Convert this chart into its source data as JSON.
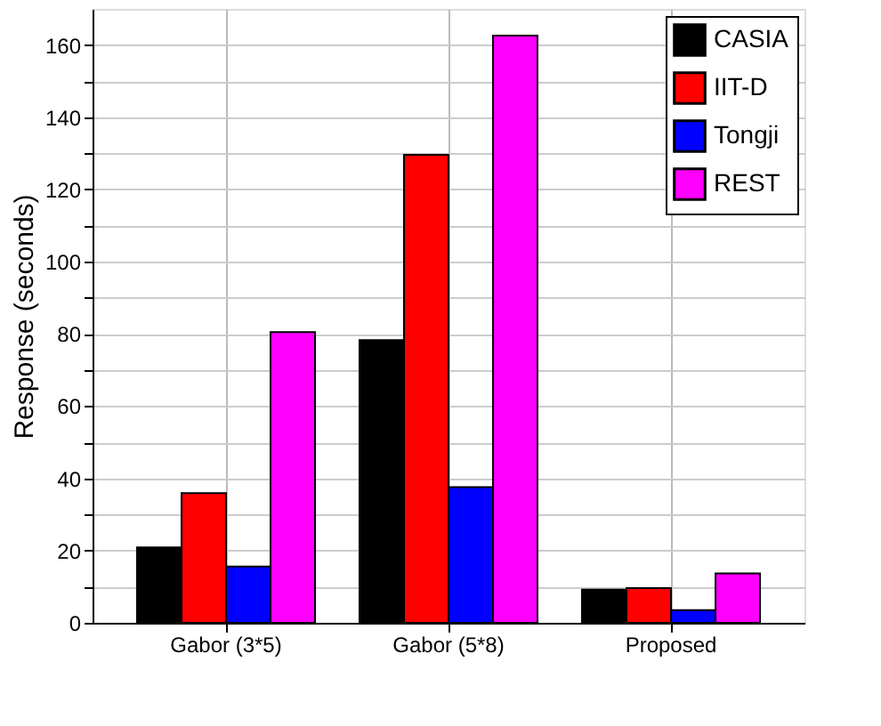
{
  "chart_data": {
    "type": "bar",
    "ylabel": "Response (seconds)",
    "categories": [
      "Gabor (3*5)",
      "Gabor (5*8)",
      "Proposed"
    ],
    "series": [
      {
        "name": "CASIA",
        "color": "#000000",
        "values": [
          20.9,
          78.3,
          9.2
        ]
      },
      {
        "name": "IIT-D",
        "color": "#ff0000",
        "values": [
          35.9,
          129.6,
          9.6
        ]
      },
      {
        "name": "Tongji",
        "color": "#0000ff",
        "values": [
          15.6,
          37.6,
          3.5
        ]
      },
      {
        "name": "REST",
        "color": "#ff00ff",
        "values": [
          80.5,
          162.6,
          13.7
        ]
      }
    ],
    "ylim": [
      0,
      170
    ],
    "yticks": [
      0,
      {
        "value": 10,
        "label": null
      },
      20,
      {
        "value": 30,
        "label": null
      },
      40,
      {
        "value": 50,
        "label": null
      },
      60,
      {
        "value": 70,
        "label": null
      },
      80,
      {
        "value": 90,
        "label": null
      },
      100,
      {
        "value": 110,
        "label": null
      },
      120,
      {
        "value": 130,
        "label": null
      },
      140,
      {
        "value": 150,
        "label": null
      },
      160
    ],
    "grid": true,
    "legend": "top right"
  }
}
